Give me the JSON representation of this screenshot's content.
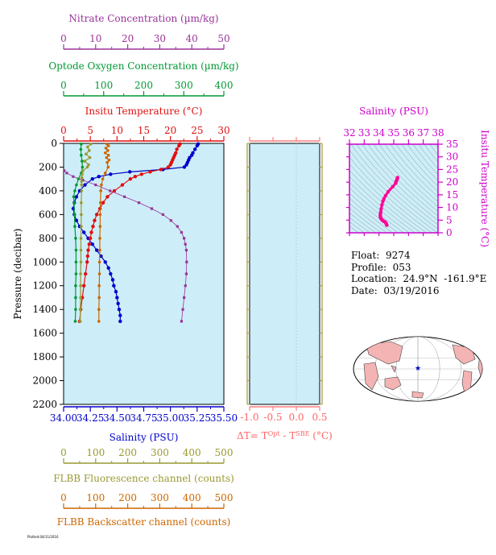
{
  "colors": {
    "nitrate": "#993399",
    "oxygen": "#009933",
    "temperature": "#e01010",
    "salinity": "#0000cc",
    "fluorescence": "#999933",
    "backscatter": "#cc6600",
    "delta_t": "#ff6666",
    "ts_axis": "#cc00cc",
    "panel_bg": "#cdeef8",
    "land": "#f4b4b4"
  },
  "float_info": {
    "float_line": "Float:  9274",
    "profile_line": "Profile:  053",
    "location_line": "Location:  24.9°N  -161.9°E",
    "date_line": "Date:  03/19/2016"
  },
  "footer_text": "Plotted:04/11/2016",
  "chart_data": [
    {
      "type": "line",
      "panel": "main-profile",
      "ylabel": "Pressure (decibar)",
      "ylim": [
        0,
        2200
      ],
      "yreverse": true,
      "yticks": [
        0,
        200,
        400,
        600,
        800,
        1000,
        1200,
        1400,
        1600,
        1800,
        2000,
        2200
      ],
      "axes": {
        "nitrate": {
          "label": "Nitrate Concentration (µm/kg)",
          "range": [
            0,
            50
          ],
          "ticks": [
            0,
            10,
            20,
            30,
            40,
            50
          ]
        },
        "oxygen": {
          "label": "Optode Oxygen Concentration (µm/kg)",
          "range": [
            0,
            400
          ],
          "ticks": [
            0,
            100,
            200,
            300,
            400
          ]
        },
        "temperature": {
          "label": "Insitu Temperature (°C)",
          "range": [
            0,
            30
          ],
          "ticks": [
            0,
            5,
            10,
            15,
            20,
            25,
            30
          ]
        },
        "salinity": {
          "label": "Salinity (PSU)",
          "range": [
            34.0,
            35.5
          ],
          "ticks": [
            "34.00",
            "34.25",
            "34.50",
            "34.75",
            "35.00",
            "35.25",
            "35.50"
          ]
        },
        "fluorescence": {
          "label": "FLBB Fluorescence channel (counts)",
          "range": [
            0,
            500
          ],
          "ticks": [
            0,
            100,
            200,
            300,
            400,
            500
          ]
        },
        "backscatter": {
          "label": "FLBB Backscatter channel (counts)",
          "range": [
            0,
            500
          ],
          "ticks": [
            0,
            100,
            200,
            300,
            400,
            500
          ]
        }
      },
      "series": [
        {
          "name": "Salinity (PSU)",
          "key": "salinity",
          "pressure": [
            5,
            20,
            50,
            80,
            100,
            120,
            140,
            160,
            180,
            200,
            220,
            240,
            260,
            280,
            300,
            350,
            400,
            450,
            500,
            550,
            600,
            650,
            700,
            750,
            800,
            850,
            900,
            950,
            1000,
            1050,
            1100,
            1150,
            1200,
            1250,
            1300,
            1350,
            1400,
            1450,
            1500
          ],
          "values": [
            35.26,
            35.25,
            35.23,
            35.21,
            35.2,
            35.18,
            35.17,
            35.16,
            35.15,
            35.13,
            34.93,
            34.62,
            34.44,
            34.33,
            34.27,
            34.2,
            34.15,
            34.12,
            34.1,
            34.09,
            34.1,
            34.12,
            34.15,
            34.19,
            34.23,
            34.27,
            34.31,
            34.35,
            34.39,
            34.42,
            34.44,
            34.46,
            34.47,
            34.49,
            34.5,
            34.51,
            34.52,
            34.53,
            34.53
          ]
        },
        {
          "name": "Insitu Temperature (°C)",
          "key": "temperature",
          "pressure": [
            5,
            20,
            50,
            80,
            100,
            120,
            140,
            160,
            180,
            200,
            220,
            240,
            260,
            280,
            300,
            350,
            400,
            450,
            500,
            550,
            600,
            650,
            700,
            750,
            800,
            850,
            900,
            950,
            1000,
            1100,
            1200,
            1300,
            1400,
            1500
          ],
          "values": [
            21.8,
            21.6,
            21.2,
            21.0,
            20.8,
            20.6,
            20.4,
            20.2,
            20.0,
            19.6,
            18.2,
            16.2,
            14.6,
            13.4,
            12.5,
            11.0,
            9.5,
            8.2,
            7.4,
            6.8,
            6.2,
            5.8,
            5.5,
            5.2,
            5.0,
            4.8,
            4.6,
            4.5,
            4.4,
            4.1,
            3.8,
            3.5,
            3.2,
            3.0
          ]
        },
        {
          "name": "Nitrate Concentration (µm/kg)",
          "key": "nitrate",
          "pressure": [
            230,
            250,
            280,
            310,
            350,
            400,
            450,
            500,
            550,
            600,
            650,
            700,
            750,
            800,
            850,
            900,
            1000,
            1100,
            1200,
            1300,
            1400,
            1500
          ],
          "values": [
            0.2,
            1.0,
            3.0,
            6.0,
            10.0,
            14.5,
            19.0,
            23.5,
            27.5,
            31.0,
            33.5,
            35.5,
            36.8,
            37.6,
            38.0,
            38.3,
            38.4,
            38.3,
            38.0,
            37.6,
            37.2,
            36.8
          ]
        },
        {
          "name": "Optode Oxygen Concentration (µm/kg)",
          "key": "oxygen",
          "pressure": [
            5,
            50,
            100,
            150,
            200,
            250,
            300,
            350,
            400,
            450,
            500,
            600,
            700,
            800,
            900,
            1000,
            1100,
            1200,
            1300,
            1400,
            1500
          ],
          "values": [
            44,
            43,
            44,
            46,
            47,
            44,
            37,
            32,
            28,
            25,
            26,
            27,
            28,
            30,
            31,
            31,
            31,
            30,
            30,
            30,
            29
          ]
        },
        {
          "name": "FLBB Backscatter channel (counts)",
          "key": "backscatter",
          "pressure": [
            5,
            20,
            40,
            60,
            80,
            100,
            120,
            140,
            160,
            200,
            250,
            300,
            350,
            400,
            500,
            600,
            700,
            800,
            900,
            1000,
            1100,
            1200,
            1300,
            1400,
            1500
          ],
          "values": [
            135,
            140,
            132,
            138,
            130,
            140,
            134,
            142,
            136,
            139,
            130,
            122,
            118,
            116,
            115,
            114,
            114,
            113,
            113,
            112,
            112,
            111,
            111,
            110,
            110
          ]
        },
        {
          "name": "FLBB Fluorescence channel (counts)",
          "key": "fluorescence",
          "pressure": [
            5,
            30,
            60,
            90,
            120,
            150,
            180,
            200,
            230,
            260,
            290,
            320,
            350,
            400,
            500,
            600,
            700,
            800,
            900,
            1000,
            1100,
            1200,
            1300,
            1400,
            1500
          ],
          "values": [
            85,
            75,
            80,
            70,
            82,
            66,
            78,
            74,
            60,
            58,
            57,
            56,
            56,
            56,
            55,
            55,
            55,
            54,
            54,
            54,
            53,
            53,
            53,
            52,
            52
          ]
        }
      ]
    },
    {
      "type": "line",
      "panel": "delta-t",
      "xlabel": "ΔT= T^Opt - T^SBE (°C)",
      "xlabel_parts": {
        "prefix": "ΔT= T",
        "sup1": "Opt",
        "mid": " - T",
        "sup2": "SBE",
        "suffix": " (°C)"
      },
      "xlim": [
        -1.0,
        0.5
      ],
      "xticks": [
        "-1.0",
        "-0.5",
        "0.0",
        "0.5"
      ],
      "ylim": [
        0,
        2200
      ],
      "series": []
    },
    {
      "type": "scatter",
      "panel": "ts-diagram",
      "xlabel": "Salinity (PSU)",
      "ylabel": "Insitu Temperature (°C)",
      "xlim": [
        32,
        38
      ],
      "ylim": [
        0,
        35
      ],
      "xticks": [
        32,
        33,
        34,
        35,
        36,
        37,
        38
      ],
      "yticks": [
        0,
        5,
        10,
        15,
        20,
        25,
        30,
        35
      ],
      "x": [
        35.26,
        35.23,
        35.2,
        35.17,
        35.15,
        35.13,
        34.93,
        34.62,
        34.44,
        34.33,
        34.27,
        34.2,
        34.15,
        34.12,
        34.1,
        34.09,
        34.1,
        34.12,
        34.15,
        34.19,
        34.23,
        34.27,
        34.31,
        34.35,
        34.39,
        34.44,
        34.47,
        34.5,
        34.52,
        34.53
      ],
      "y": [
        21.8,
        21.2,
        20.8,
        20.4,
        20.0,
        19.6,
        18.2,
        16.2,
        14.6,
        13.4,
        12.5,
        11.0,
        9.5,
        8.2,
        7.4,
        6.8,
        6.2,
        5.8,
        5.5,
        5.2,
        5.0,
        4.8,
        4.6,
        4.5,
        4.4,
        4.1,
        3.8,
        3.5,
        3.2,
        3.0
      ]
    }
  ],
  "map": {
    "marker_lat": 24.9,
    "marker_lon": -161.9
  }
}
